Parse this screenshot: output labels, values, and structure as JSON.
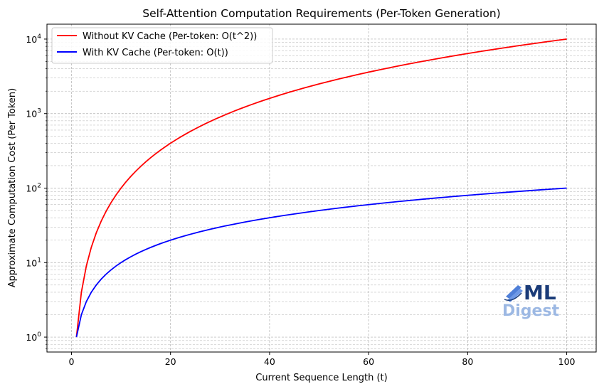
{
  "chart_data": {
    "type": "line",
    "title": "Self-Attention Computation Requirements (Per-Token Generation)",
    "xlabel": "Current Sequence Length (t)",
    "ylabel": "Approximate Computation Cost (Per Token)",
    "xlim": [
      -4.95,
      105.95
    ],
    "ylim_log10": [
      -0.2,
      4.2
    ],
    "yscale": "log",
    "grid": true,
    "legend_position": "upper-left",
    "x_ticks": [
      0,
      20,
      40,
      60,
      80,
      100
    ],
    "x_tick_labels": [
      "0",
      "20",
      "40",
      "60",
      "80",
      "100"
    ],
    "y_ticks_exp": [
      0,
      1,
      2,
      3,
      4
    ],
    "y_tick_base": "10",
    "x": {
      "start": 1,
      "end": 100,
      "step": 1
    },
    "series": [
      {
        "name": "Without KV Cache (Per-token: O(t^2))",
        "formula": "t^2",
        "y_at_x_start": 1,
        "y_at_x_end": 10000,
        "color": "#ff0000"
      },
      {
        "name": "With KV Cache (Per-token: O(t))",
        "formula": "t",
        "y_at_x_start": 1,
        "y_at_x_end": 100,
        "color": "#0000ff"
      }
    ]
  },
  "watermark": {
    "line1": "ML",
    "line2": "Digest",
    "icon": "book-icon"
  }
}
